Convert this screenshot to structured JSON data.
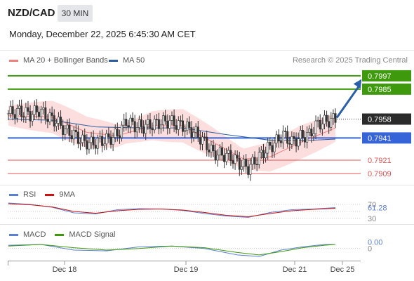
{
  "header": {
    "symbol": "NZD/CAD",
    "timeframe": "30 MIN",
    "datetime": "Monday, December 22, 2025 6:45:30 AM CET",
    "credit": "Research © 2025 Trading Central"
  },
  "colors": {
    "ma20": "#f08080",
    "ma50": "#2e5d9e",
    "bollinger_fill": "#fcd6d6",
    "candle": "#333333",
    "target_green": "#3e9a0c",
    "support_blue": "#3563d8",
    "support_red": "#e05555",
    "arrow": "#2a5ea8",
    "rsi": "#5b7fd1",
    "rsi_ma": "#cc1111",
    "macd": "#5b7fd1",
    "macd_signal": "#3e9a0c"
  },
  "chart_data": {
    "type": "candlestick",
    "symbol": "NZD/CAD",
    "timeframe": "30 MIN",
    "x_ticks": [
      "Dec 18",
      "Dec 19",
      "Dec 21",
      "Dec 25"
    ],
    "ylim": [
      0.7902,
      0.8002
    ],
    "legend": [
      {
        "name": "MA 20 + Bollinger Bands",
        "color": "#f08080"
      },
      {
        "name": "MA 50",
        "color": "#2e5d9e"
      }
    ],
    "last_price": "0.7958",
    "levels": [
      {
        "label": "0.7997",
        "value": 0.7997,
        "kind": "resistance",
        "color": "#3e9a0c"
      },
      {
        "label": "0.7985",
        "value": 0.7985,
        "kind": "resistance",
        "color": "#3e9a0c"
      },
      {
        "label": "0.7941",
        "value": 0.7941,
        "kind": "pivot",
        "color": "#3563d8"
      },
      {
        "label": "0.7921",
        "value": 0.7921,
        "kind": "support",
        "color": "#e05555"
      },
      {
        "label": "0.7909",
        "value": 0.7909,
        "kind": "support",
        "color": "#e05555"
      }
    ],
    "close_path": [
      [
        0,
        0.7963
      ],
      [
        5,
        0.7965
      ],
      [
        10,
        0.7962
      ],
      [
        14,
        0.7966
      ],
      [
        18,
        0.796
      ],
      [
        22,
        0.7956
      ],
      [
        26,
        0.7948
      ],
      [
        30,
        0.7944
      ],
      [
        34,
        0.7938
      ],
      [
        38,
        0.7936
      ],
      [
        42,
        0.7938
      ],
      [
        46,
        0.794
      ],
      [
        50,
        0.7944
      ],
      [
        54,
        0.7956
      ],
      [
        58,
        0.7952
      ],
      [
        62,
        0.7951
      ],
      [
        66,
        0.7953
      ],
      [
        70,
        0.7955
      ],
      [
        74,
        0.7956
      ],
      [
        78,
        0.7953
      ],
      [
        82,
        0.795
      ],
      [
        86,
        0.7945
      ],
      [
        90,
        0.7937
      ],
      [
        94,
        0.7927
      ],
      [
        98,
        0.7926
      ],
      [
        102,
        0.7924
      ],
      [
        106,
        0.7918
      ],
      [
        110,
        0.7914
      ],
      [
        114,
        0.7922
      ],
      [
        118,
        0.793
      ],
      [
        122,
        0.7936
      ],
      [
        126,
        0.7944
      ],
      [
        130,
        0.7937
      ],
      [
        134,
        0.7942
      ],
      [
        138,
        0.7944
      ],
      [
        142,
        0.7954
      ],
      [
        146,
        0.7956
      ],
      [
        150,
        0.7958
      ]
    ],
    "ma20_path": [
      [
        0,
        0.7961
      ],
      [
        20,
        0.796
      ],
      [
        36,
        0.7946
      ],
      [
        50,
        0.7943
      ],
      [
        66,
        0.7952
      ],
      [
        80,
        0.7952
      ],
      [
        94,
        0.7937
      ],
      [
        108,
        0.7922
      ],
      [
        120,
        0.7924
      ],
      [
        134,
        0.7937
      ],
      [
        150,
        0.795
      ]
    ],
    "ma50_path": [
      [
        0,
        0.7958
      ],
      [
        20,
        0.7957
      ],
      [
        40,
        0.7951
      ],
      [
        60,
        0.795
      ],
      [
        80,
        0.795
      ],
      [
        100,
        0.7944
      ],
      [
        120,
        0.7939
      ],
      [
        140,
        0.7939
      ],
      [
        150,
        0.794
      ]
    ],
    "arrow": {
      "from": [
        150,
        0.7958
      ],
      "to": [
        162,
        0.7994
      ]
    },
    "rsi": {
      "title": "RSI",
      "ma_label": "9MA",
      "value": "61.28",
      "ticks": [
        "70",
        "30"
      ],
      "ylim": [
        20,
        80
      ],
      "rsi_path": [
        [
          0,
          74
        ],
        [
          10,
          70
        ],
        [
          20,
          62
        ],
        [
          30,
          46
        ],
        [
          40,
          43
        ],
        [
          50,
          55
        ],
        [
          60,
          58
        ],
        [
          70,
          57
        ],
        [
          80,
          53
        ],
        [
          90,
          44
        ],
        [
          100,
          37
        ],
        [
          110,
          33
        ],
        [
          120,
          47
        ],
        [
          130,
          55
        ],
        [
          140,
          57
        ],
        [
          150,
          61
        ]
      ],
      "ma_path": [
        [
          0,
          72
        ],
        [
          10,
          69
        ],
        [
          20,
          63
        ],
        [
          30,
          50
        ],
        [
          40,
          45
        ],
        [
          50,
          52
        ],
        [
          60,
          56
        ],
        [
          70,
          57
        ],
        [
          80,
          54
        ],
        [
          90,
          47
        ],
        [
          100,
          39
        ],
        [
          110,
          35
        ],
        [
          120,
          44
        ],
        [
          130,
          52
        ],
        [
          140,
          56
        ],
        [
          150,
          59
        ]
      ]
    },
    "macd": {
      "title": "MACD",
      "signal_label": "MACD Signal",
      "value": "0.00",
      "tick": "0",
      "ylim": [
        -0.0016,
        0.0012
      ],
      "macd_path": [
        [
          0,
          0.0004
        ],
        [
          15,
          0.0005
        ],
        [
          30,
          -0.0002
        ],
        [
          45,
          -0.0003
        ],
        [
          60,
          0.0002
        ],
        [
          75,
          0.0003
        ],
        [
          90,
          0.0
        ],
        [
          105,
          -0.0008
        ],
        [
          115,
          -0.001
        ],
        [
          125,
          -0.0002
        ],
        [
          135,
          0.0002
        ],
        [
          145,
          0.0005
        ],
        [
          150,
          0.0005
        ]
      ],
      "signal_path": [
        [
          0,
          0.0003
        ],
        [
          15,
          0.0005
        ],
        [
          30,
          0.0001
        ],
        [
          45,
          -0.0002
        ],
        [
          60,
          0.0
        ],
        [
          75,
          0.0003
        ],
        [
          90,
          0.0001
        ],
        [
          105,
          -0.0005
        ],
        [
          115,
          -0.0008
        ],
        [
          125,
          -0.0004
        ],
        [
          135,
          0.0001
        ],
        [
          145,
          0.0004
        ],
        [
          150,
          0.0005
        ]
      ]
    }
  }
}
